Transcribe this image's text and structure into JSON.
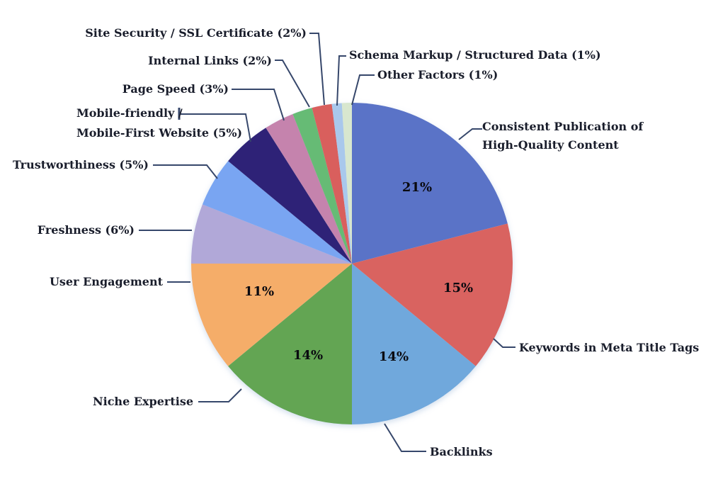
{
  "page": {
    "background": "#ffffff"
  },
  "colors": {
    "leader_line": "#36476b",
    "label_text": "#191d2b",
    "percent_text": "#0a0a10",
    "shadow": "#9db8d8"
  },
  "chart_data": {
    "type": "pie",
    "title": "",
    "unit": "%",
    "legend_position": "none",
    "label_style": "external-leader-lines",
    "start_angle_deg": 0,
    "direction": "clockwise",
    "total": 100,
    "slices": [
      {
        "id": "consistent",
        "label": "Consistent Publication of High-Quality Content",
        "label_lines": [
          "Consistent Publication of",
          "High-Quality Content"
        ],
        "value": 21,
        "inside_label": "21%",
        "color": "#5a73c7"
      },
      {
        "id": "keywords",
        "label": "Keywords in Meta Title Tags",
        "label_lines": [
          "Keywords in Meta Title Tags"
        ],
        "value": 15,
        "inside_label": "15%",
        "color": "#d96361"
      },
      {
        "id": "backlinks",
        "label": "Backlinks",
        "label_lines": [
          "Backlinks"
        ],
        "value": 14,
        "inside_label": "14%",
        "color": "#6fa8dc"
      },
      {
        "id": "niche",
        "label": "Niche Expertise",
        "label_lines": [
          "Niche Expertise"
        ],
        "value": 14,
        "inside_label": "14%",
        "color": "#63a553"
      },
      {
        "id": "user-engagement",
        "label": "User Engagement",
        "label_lines": [
          "User Engagement"
        ],
        "value": 11,
        "inside_label": "11%",
        "color": "#f5ad69"
      },
      {
        "id": "freshness",
        "label": "Freshness (6%)",
        "label_lines": [
          "Freshness (6%)"
        ],
        "value": 6,
        "inside_label": "",
        "color": "#b1a8d8"
      },
      {
        "id": "trustworthiness",
        "label": "Trustworthiness (5%)",
        "label_lines": [
          "Trustworthiness (5%)"
        ],
        "value": 5,
        "inside_label": "",
        "color": "#79a5f2"
      },
      {
        "id": "mobile",
        "label": "Mobile-friendly / Mobile-First Website (5%)",
        "label_lines": [
          "Mobile-friendly /",
          "Mobile-First Website (5%)"
        ],
        "value": 5,
        "inside_label": "",
        "color": "#2f2277"
      },
      {
        "id": "page-speed",
        "label": "Page Speed (3%)",
        "label_lines": [
          "Page Speed (3%)"
        ],
        "value": 3,
        "inside_label": "",
        "color": "#c583ad"
      },
      {
        "id": "internal-links",
        "label": "Internal Links (2%)",
        "label_lines": [
          "Internal Links (2%)"
        ],
        "value": 2,
        "inside_label": "",
        "color": "#66bb74"
      },
      {
        "id": "site-security",
        "label": "Site Security / SSL Certificate (2%)",
        "label_lines": [
          "Site Security / SSL Certificate (2%)"
        ],
        "value": 2,
        "inside_label": "",
        "color": "#d95f5d"
      },
      {
        "id": "schema",
        "label": "Schema Markup / Structured Data (1%)",
        "label_lines": [
          "Schema Markup / Structured Data (1%)"
        ],
        "value": 1,
        "inside_label": "",
        "color": "#a9c8ec"
      },
      {
        "id": "other",
        "label": "Other Factors (1%)",
        "label_lines": [
          "Other Factors (1%)"
        ],
        "value": 1,
        "inside_label": "",
        "color": "#d8e7cf"
      }
    ]
  }
}
